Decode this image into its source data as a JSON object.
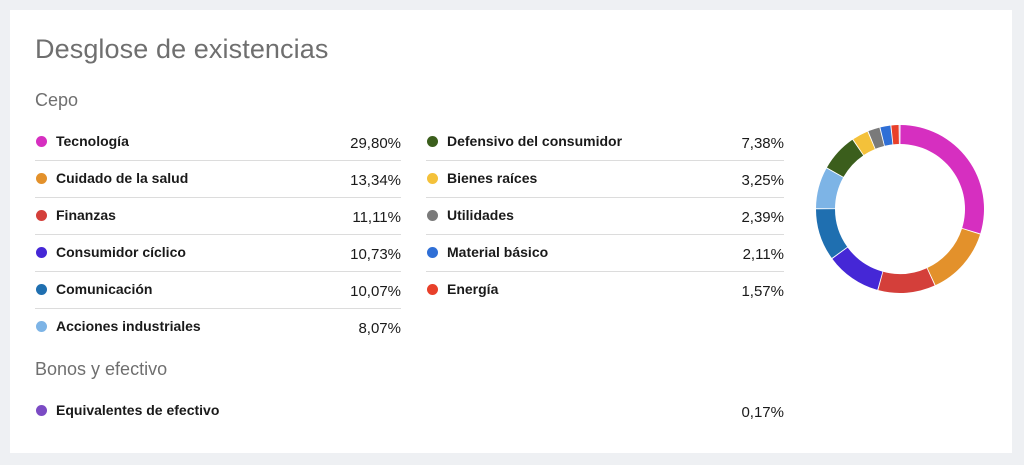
{
  "title": "Desglose de existencias",
  "sections": {
    "stocks_label": "Cepo",
    "bonds_label": "Bonos y efectivo"
  },
  "chart_data": {
    "type": "pie",
    "title": "Desglose de existencias",
    "slices": [
      {
        "label": "Tecnología",
        "value": 29.8,
        "display": "29,80%",
        "color": "#d62fc0"
      },
      {
        "label": "Cuidado de la salud",
        "value": 13.34,
        "display": "13,34%",
        "color": "#e3912b"
      },
      {
        "label": "Finanzas",
        "value": 11.11,
        "display": "11,11%",
        "color": "#d43f3a"
      },
      {
        "label": "Consumidor cíclico",
        "value": 10.73,
        "display": "10,73%",
        "color": "#4527d6"
      },
      {
        "label": "Comunicación",
        "value": 10.07,
        "display": "10,07%",
        "color": "#1f6fb0"
      },
      {
        "label": "Acciones industriales",
        "value": 8.07,
        "display": "8,07%",
        "color": "#7db4e6"
      },
      {
        "label": "Defensivo del consumidor",
        "value": 7.38,
        "display": "7,38%",
        "color": "#3b5e1c"
      },
      {
        "label": "Bienes raíces",
        "value": 3.25,
        "display": "3,25%",
        "color": "#f4c13a"
      },
      {
        "label": "Utilidades",
        "value": 2.39,
        "display": "2,39%",
        "color": "#7a7a7a"
      },
      {
        "label": "Material básico",
        "value": 2.11,
        "display": "2,11%",
        "color": "#2f6fd6"
      },
      {
        "label": "Energía",
        "value": 1.57,
        "display": "1,57%",
        "color": "#e8402a"
      },
      {
        "label": "Equivalentes de efectivo",
        "value": 0.17,
        "display": "0,17%",
        "color": "#7b4bc4"
      }
    ]
  }
}
